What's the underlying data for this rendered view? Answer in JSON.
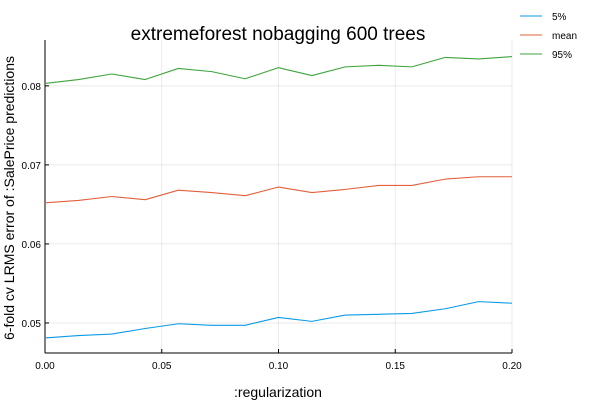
{
  "chart_data": {
    "type": "line",
    "title": "extremeforest nobagging 600 trees",
    "xlabel": ":regularization",
    "ylabel": "6-fold cv LRMS error of :SalePrice predictions",
    "xlim": [
      0.0,
      0.2
    ],
    "ylim": [
      0.0462,
      0.0858
    ],
    "xticks": [
      0.0,
      0.05,
      0.1,
      0.15,
      0.2
    ],
    "xtick_labels": [
      "0.00",
      "0.05",
      "0.10",
      "0.15",
      "0.20"
    ],
    "yticks": [
      0.05,
      0.06,
      0.07,
      0.08
    ],
    "ytick_labels": [
      "0.05",
      "0.06",
      "0.07",
      "0.08"
    ],
    "grid": true,
    "legend_position": "top-right",
    "x": [
      0.0,
      0.0143,
      0.0286,
      0.0429,
      0.0571,
      0.0714,
      0.0857,
      0.1,
      0.1143,
      0.1286,
      0.1429,
      0.1571,
      0.1714,
      0.1857,
      0.2
    ],
    "series": [
      {
        "name": "5%",
        "color": "#0a9ae6",
        "values": [
          0.0481,
          0.0484,
          0.0486,
          0.0493,
          0.0499,
          0.0497,
          0.0497,
          0.0507,
          0.0502,
          0.051,
          0.0511,
          0.0512,
          0.0518,
          0.0527,
          0.0525
        ]
      },
      {
        "name": "mean",
        "color": "#e2603c",
        "values": [
          0.0652,
          0.0655,
          0.066,
          0.0656,
          0.0668,
          0.0665,
          0.0661,
          0.0672,
          0.0665,
          0.0669,
          0.0674,
          0.0674,
          0.0682,
          0.0685,
          0.0685
        ]
      },
      {
        "name": "95%",
        "color": "#3ea43e",
        "values": [
          0.0803,
          0.0808,
          0.0815,
          0.0808,
          0.0822,
          0.0818,
          0.0809,
          0.0823,
          0.0813,
          0.0824,
          0.0826,
          0.0824,
          0.0836,
          0.0834,
          0.0837
        ]
      }
    ]
  }
}
